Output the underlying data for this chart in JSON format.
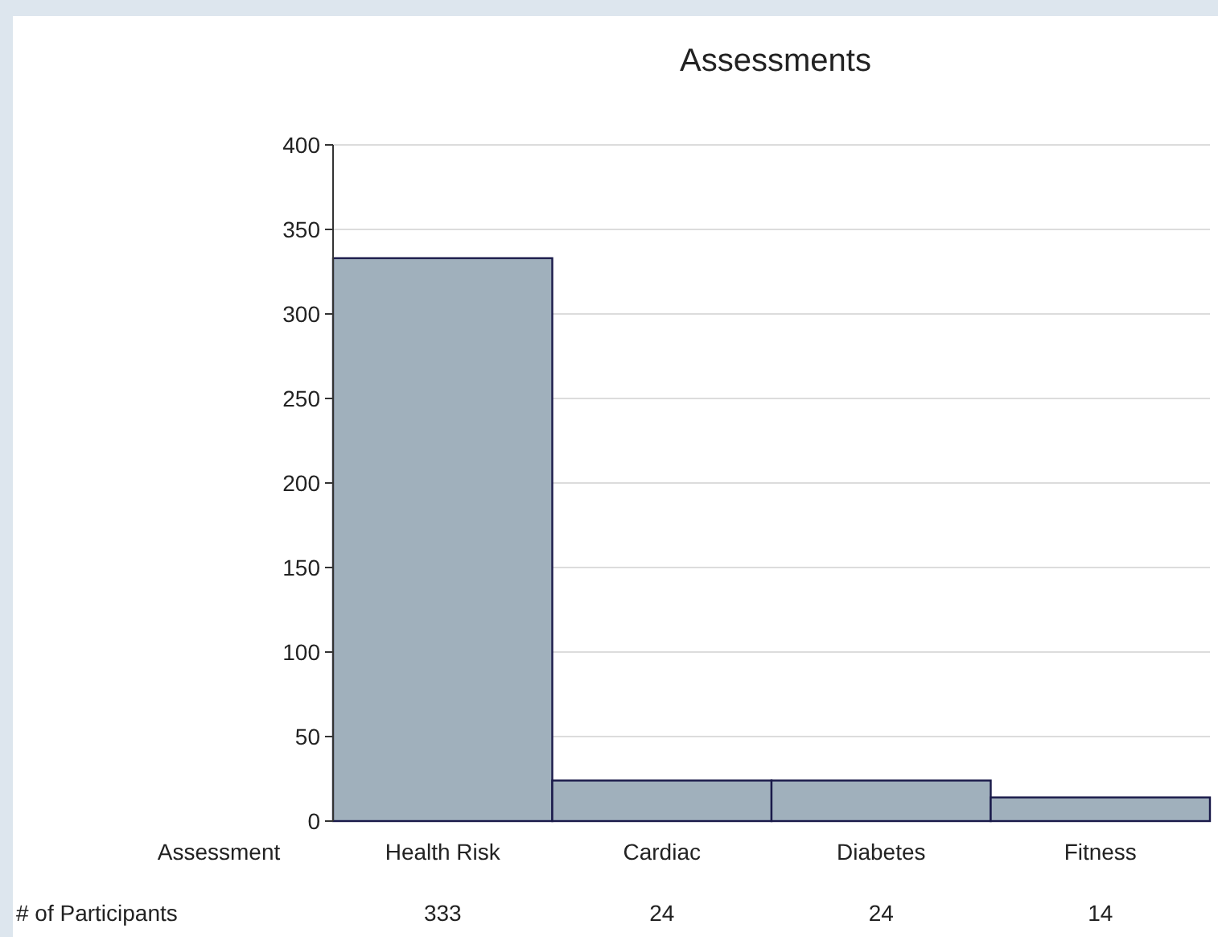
{
  "chart_data": {
    "type": "bar",
    "title": "Assessments",
    "xlabel": "Assessment",
    "categories": [
      "Health Risk",
      "Cardiac",
      "Diabetes",
      "Fitness"
    ],
    "values": [
      333,
      24,
      24,
      14
    ],
    "color": "#a0b0bc",
    "ylim": [
      0,
      400
    ],
    "yticks": [
      0,
      50,
      100,
      150,
      200,
      250,
      300,
      350,
      400
    ],
    "grid": "y",
    "data_labels": true,
    "annotations": [
      "# of Participants"
    ]
  }
}
